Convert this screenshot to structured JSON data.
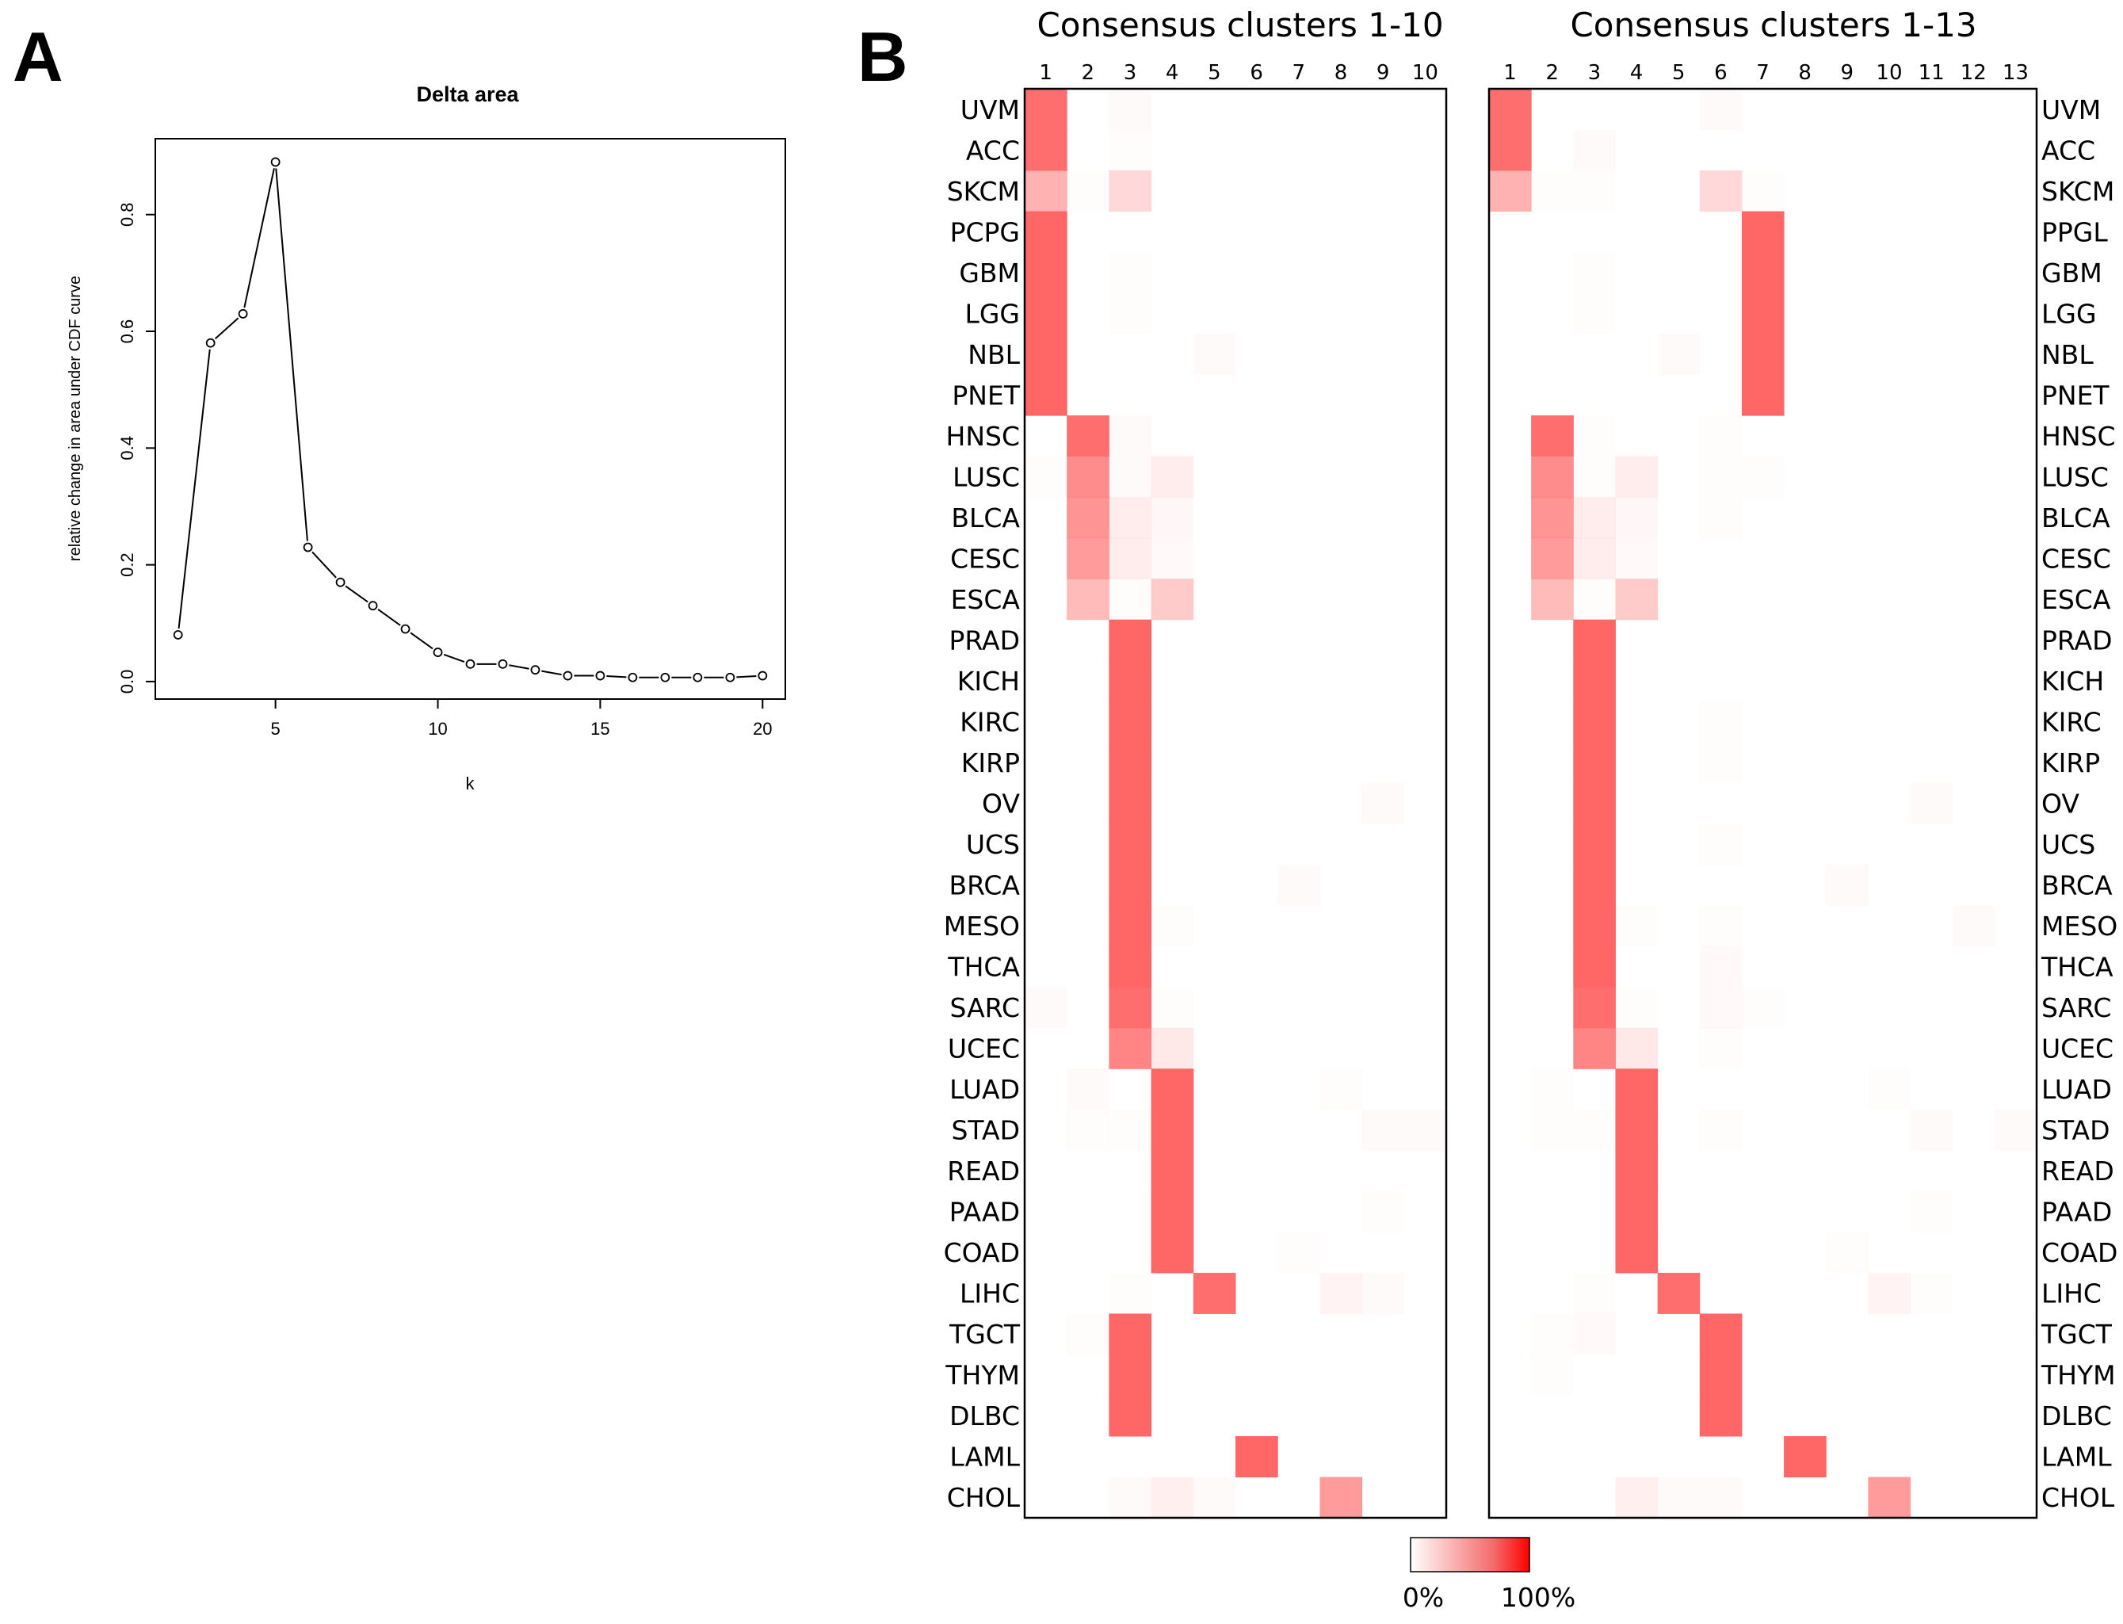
{
  "panels": {
    "a_letter": "A",
    "b_letter": "B"
  },
  "chart_data": [
    {
      "type": "line",
      "title": "Delta area",
      "xlabel": "k",
      "ylabel": "relative change in area under CDF curve",
      "x": [
        2,
        3,
        4,
        5,
        6,
        7,
        8,
        9,
        10,
        11,
        12,
        13,
        14,
        15,
        16,
        17,
        18,
        19,
        20
      ],
      "y": [
        0.08,
        0.58,
        0.63,
        0.89,
        0.23,
        0.17,
        0.13,
        0.09,
        0.05,
        0.03,
        0.03,
        0.02,
        0.01,
        0.01,
        0.007,
        0.007,
        0.007,
        0.007,
        0.01
      ],
      "xlim": [
        1.3,
        20.7
      ],
      "ylim": [
        -0.03,
        0.93
      ],
      "xticks": [
        5,
        10,
        15,
        20
      ],
      "yticks": [
        0.0,
        0.2,
        0.4,
        0.6,
        0.8
      ],
      "xtick_labels": [
        "5",
        "10",
        "15",
        "20"
      ],
      "ytick_labels": [
        "0.0",
        "0.2",
        "0.4",
        "0.6",
        "0.8"
      ],
      "markers": "open-circle",
      "grid": false,
      "color": "#000000"
    },
    {
      "type": "heatmap",
      "title": "Consensus clusters 1-10",
      "columns": [
        "1",
        "2",
        "3",
        "4",
        "5",
        "6",
        "7",
        "8",
        "9",
        "10"
      ],
      "rows": [
        "UVM",
        "ACC",
        "SKCM",
        "PCPG",
        "GBM",
        "LGG",
        "NBL",
        "PNET",
        "HNSC",
        "LUSC",
        "BLCA",
        "CESC",
        "ESCA",
        "PRAD",
        "KICH",
        "KIRC",
        "KIRP",
        "OV",
        "UCS",
        "BRCA",
        "MESO",
        "THCA",
        "SARC",
        "UCEC",
        "LUAD",
        "STAD",
        "READ",
        "PAAD",
        "COAD",
        "LIHC",
        "TGCT",
        "THYM",
        "DLBC",
        "LAML",
        "CHOL"
      ],
      "row_labels_side": "left",
      "values": [
        [
          0.95,
          0,
          0.03,
          0,
          0,
          0,
          0,
          0,
          0,
          0
        ],
        [
          0.95,
          0,
          0.02,
          0,
          0,
          0,
          0,
          0,
          0,
          0
        ],
        [
          0.5,
          0.02,
          0.25,
          0,
          0,
          0,
          0,
          0,
          0,
          0
        ],
        [
          1,
          0,
          0,
          0,
          0,
          0,
          0,
          0,
          0,
          0
        ],
        [
          1,
          0,
          0.02,
          0,
          0,
          0,
          0,
          0,
          0,
          0
        ],
        [
          1,
          0,
          0.02,
          0,
          0,
          0,
          0,
          0,
          0,
          0
        ],
        [
          1,
          0,
          0,
          0,
          0.03,
          0,
          0,
          0,
          0,
          0
        ],
        [
          1,
          0,
          0,
          0,
          0,
          0,
          0,
          0,
          0,
          0
        ],
        [
          0,
          0.95,
          0.03,
          0,
          0,
          0,
          0,
          0,
          0,
          0
        ],
        [
          0.02,
          0.75,
          0.03,
          0.12,
          0,
          0,
          0,
          0,
          0,
          0
        ],
        [
          0,
          0.7,
          0.12,
          0.05,
          0,
          0,
          0,
          0,
          0,
          0
        ],
        [
          0,
          0.65,
          0.12,
          0.04,
          0,
          0,
          0,
          0,
          0,
          0
        ],
        [
          0,
          0.45,
          0.02,
          0.35,
          0,
          0,
          0,
          0,
          0,
          0
        ],
        [
          0,
          0,
          1,
          0,
          0,
          0,
          0,
          0,
          0,
          0
        ],
        [
          0,
          0,
          1,
          0,
          0,
          0,
          0,
          0,
          0,
          0
        ],
        [
          0,
          0,
          1,
          0,
          0,
          0,
          0,
          0,
          0,
          0
        ],
        [
          0,
          0,
          1,
          0,
          0,
          0,
          0,
          0,
          0,
          0
        ],
        [
          0,
          0,
          1,
          0,
          0,
          0,
          0,
          0,
          0.03,
          0
        ],
        [
          0,
          0,
          1,
          0,
          0,
          0,
          0,
          0,
          0,
          0
        ],
        [
          0,
          0,
          1,
          0,
          0,
          0,
          0.03,
          0,
          0,
          0
        ],
        [
          0,
          0,
          1,
          0.02,
          0,
          0,
          0,
          0,
          0,
          0
        ],
        [
          0,
          0,
          1,
          0,
          0,
          0,
          0,
          0,
          0,
          0
        ],
        [
          0.03,
          0,
          0.95,
          0.02,
          0,
          0,
          0,
          0,
          0,
          0
        ],
        [
          0,
          0,
          0.8,
          0.15,
          0,
          0,
          0,
          0,
          0,
          0
        ],
        [
          0,
          0.03,
          0,
          1,
          0,
          0,
          0,
          0.02,
          0,
          0
        ],
        [
          0,
          0.02,
          0.02,
          1,
          0,
          0,
          0,
          0,
          0.03,
          0.03
        ],
        [
          0,
          0,
          0,
          1,
          0,
          0,
          0,
          0,
          0,
          0
        ],
        [
          0,
          0,
          0,
          1,
          0,
          0,
          0,
          0,
          0.02,
          0
        ],
        [
          0,
          0,
          0,
          1,
          0,
          0,
          0.02,
          0,
          0,
          0
        ],
        [
          0,
          0,
          0.02,
          0,
          0.95,
          0,
          0,
          0.08,
          0.03,
          0
        ],
        [
          0,
          0.02,
          1,
          0,
          0,
          0,
          0,
          0,
          0,
          0
        ],
        [
          0,
          0,
          1,
          0,
          0,
          0,
          0,
          0,
          0,
          0
        ],
        [
          0,
          0,
          1,
          0,
          0,
          0,
          0,
          0,
          0,
          0
        ],
        [
          0,
          0,
          0,
          0,
          0,
          1,
          0,
          0,
          0,
          0
        ],
        [
          0,
          0,
          0.03,
          0.1,
          0.03,
          0,
          0,
          0.65,
          0,
          0
        ]
      ]
    },
    {
      "type": "heatmap",
      "title": "Consensus clusters 1-13",
      "columns": [
        "1",
        "2",
        "3",
        "4",
        "5",
        "6",
        "7",
        "8",
        "9",
        "10",
        "11",
        "12",
        "13"
      ],
      "rows": [
        "UVM",
        "ACC",
        "SKCM",
        "PPGL",
        "GBM",
        "LGG",
        "NBL",
        "PNET",
        "HNSC",
        "LUSC",
        "BLCA",
        "CESC",
        "ESCA",
        "PRAD",
        "KICH",
        "KIRC",
        "KIRP",
        "OV",
        "UCS",
        "BRCA",
        "MESO",
        "THCA",
        "SARC",
        "UCEC",
        "LUAD",
        "STAD",
        "READ",
        "PAAD",
        "COAD",
        "LIHC",
        "TGCT",
        "THYM",
        "DLBC",
        "LAML",
        "CHOL"
      ],
      "row_labels_side": "right",
      "values": [
        [
          0.95,
          0,
          0,
          0,
          0,
          0.03,
          0,
          0,
          0,
          0,
          0,
          0,
          0
        ],
        [
          0.95,
          0,
          0.03,
          0,
          0,
          0,
          0,
          0,
          0,
          0,
          0,
          0,
          0
        ],
        [
          0.5,
          0.02,
          0.02,
          0,
          0,
          0.25,
          0.02,
          0,
          0,
          0,
          0,
          0,
          0
        ],
        [
          0,
          0,
          0,
          0,
          0,
          0,
          1,
          0,
          0,
          0,
          0,
          0,
          0
        ],
        [
          0,
          0,
          0.02,
          0,
          0,
          0,
          1,
          0,
          0,
          0,
          0,
          0,
          0
        ],
        [
          0,
          0,
          0.02,
          0,
          0,
          0,
          1,
          0,
          0,
          0,
          0,
          0,
          0
        ],
        [
          0,
          0,
          0,
          0,
          0.03,
          0,
          1,
          0,
          0,
          0,
          0,
          0,
          0
        ],
        [
          0,
          0,
          0,
          0,
          0,
          0,
          1,
          0,
          0,
          0,
          0,
          0,
          0
        ],
        [
          0,
          0.95,
          0.02,
          0,
          0,
          0.02,
          0,
          0,
          0,
          0,
          0,
          0,
          0
        ],
        [
          0,
          0.75,
          0.02,
          0.12,
          0,
          0.02,
          0.02,
          0,
          0,
          0,
          0,
          0,
          0
        ],
        [
          0,
          0.7,
          0.12,
          0.05,
          0,
          0.02,
          0,
          0,
          0,
          0,
          0,
          0,
          0
        ],
        [
          0,
          0.65,
          0.12,
          0.04,
          0,
          0,
          0,
          0,
          0,
          0,
          0,
          0,
          0
        ],
        [
          0,
          0.45,
          0.02,
          0.35,
          0,
          0,
          0,
          0,
          0,
          0,
          0,
          0,
          0
        ],
        [
          0,
          0,
          1,
          0,
          0,
          0,
          0,
          0,
          0,
          0,
          0,
          0,
          0
        ],
        [
          0,
          0,
          1,
          0,
          0,
          0,
          0,
          0,
          0,
          0,
          0,
          0,
          0
        ],
        [
          0,
          0,
          1,
          0,
          0,
          0.02,
          0,
          0,
          0,
          0,
          0,
          0,
          0
        ],
        [
          0,
          0,
          1,
          0,
          0,
          0.02,
          0,
          0,
          0,
          0,
          0,
          0,
          0
        ],
        [
          0,
          0,
          1,
          0,
          0,
          0,
          0,
          0,
          0,
          0,
          0.03,
          0,
          0
        ],
        [
          0,
          0,
          1,
          0,
          0,
          0.02,
          0,
          0,
          0,
          0,
          0,
          0,
          0
        ],
        [
          0,
          0,
          1,
          0,
          0,
          0,
          0,
          0,
          0.03,
          0,
          0,
          0,
          0
        ],
        [
          0,
          0,
          1,
          0.02,
          0,
          0.02,
          0,
          0,
          0,
          0,
          0,
          0.03,
          0
        ],
        [
          0,
          0,
          1,
          0,
          0,
          0.04,
          0,
          0,
          0,
          0,
          0,
          0,
          0
        ],
        [
          0,
          0,
          0.95,
          0.02,
          0,
          0.04,
          0.02,
          0,
          0,
          0,
          0,
          0,
          0
        ],
        [
          0,
          0,
          0.8,
          0.15,
          0,
          0.02,
          0,
          0,
          0,
          0,
          0,
          0,
          0
        ],
        [
          0,
          0.02,
          0,
          1,
          0,
          0,
          0,
          0,
          0,
          0.02,
          0,
          0,
          0
        ],
        [
          0,
          0.02,
          0.02,
          1,
          0,
          0.02,
          0,
          0,
          0,
          0,
          0.03,
          0,
          0.03
        ],
        [
          0,
          0,
          0,
          1,
          0,
          0,
          0,
          0,
          0,
          0,
          0,
          0,
          0
        ],
        [
          0,
          0,
          0,
          1,
          0,
          0,
          0,
          0,
          0,
          0,
          0.02,
          0,
          0
        ],
        [
          0,
          0,
          0,
          1,
          0,
          0,
          0,
          0,
          0.02,
          0,
          0,
          0,
          0
        ],
        [
          0,
          0,
          0.02,
          0,
          0.95,
          0,
          0,
          0,
          0,
          0.08,
          0.02,
          0,
          0
        ],
        [
          0,
          0.02,
          0.04,
          0,
          0,
          1,
          0,
          0,
          0,
          0,
          0,
          0,
          0
        ],
        [
          0,
          0.02,
          0,
          0,
          0,
          1,
          0,
          0,
          0,
          0,
          0,
          0,
          0
        ],
        [
          0,
          0,
          0,
          0,
          0,
          1,
          0,
          0,
          0,
          0,
          0,
          0,
          0
        ],
        [
          0,
          0,
          0,
          0,
          0,
          0,
          0,
          1,
          0,
          0,
          0,
          0,
          0
        ],
        [
          0,
          0,
          0,
          0.1,
          0.03,
          0.03,
          0,
          0,
          0,
          0.65,
          0,
          0,
          0
        ]
      ]
    }
  ],
  "colorbar": {
    "min_label": "0%",
    "max_label": "100%",
    "low_color": "#ffffff",
    "mid_color": "#f46a6a",
    "high_color": "#ff0000",
    "cell_color": "#ff6666"
  }
}
